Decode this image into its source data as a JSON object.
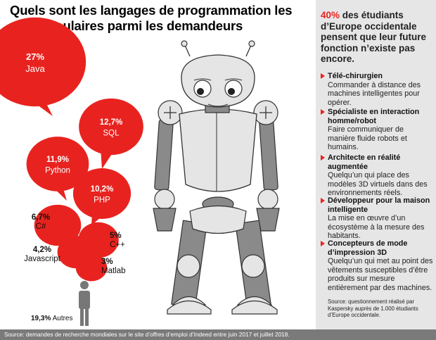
{
  "title": "Quels sont les langages de programmation les plus populaires parmi les demandeurs d’emploi?",
  "chart_data": {
    "type": "bubble-infographic",
    "unit": "%",
    "categories": [
      "Java",
      "SQL",
      "Python",
      "PHP",
      "C#",
      "C++",
      "Javascript",
      "Matlab",
      "Autres"
    ],
    "values": [
      27,
      12.7,
      11.9,
      10.2,
      6.7,
      5,
      4.2,
      3,
      19.3
    ],
    "value_labels": [
      "27%",
      "12,7%",
      "11,9%",
      "10,2%",
      "6,7%",
      "5%",
      "4,2%",
      "3%",
      "19,3%"
    ],
    "colors": {
      "bubble": "#e8231f",
      "label_in_bubble": "#ffffff"
    }
  },
  "sidebar": {
    "headline_pct": "40%",
    "headline_rest": " des étudiants d’Europe occidentale pensent que leur future fonction n’existe pas encore.",
    "items": [
      {
        "title": "Télé-chirurgien",
        "desc": "Commander à distance des machines intelligentes pour opérer."
      },
      {
        "title": "Spécialiste en interaction homme/robot",
        "desc": "Faire communiquer de manière fluide robots et humains."
      },
      {
        "title": "Architecte en réalité augmentée",
        "desc": "Quelqu’un qui place des modèles 3D virtuels dans des environnements réels."
      },
      {
        "title": "Développeur pour la maison intelligente",
        "desc": "La mise en œuvre d’un écosystème à la mesure des habitants."
      },
      {
        "title": "Concepteurs de mode d’impression 3D",
        "desc": "Quelqu’un qui met au point des vêtements susceptibles d’être produits sur mesure entièrement par des machines."
      }
    ],
    "note": "Source: questionnement réalisé par Kaspersky auprès de 1.000 étudiants d’Europe occidentale."
  },
  "footer": "Source: demandes de recherche mondiales sur le site d’offres d’emploi d’Indeed entre juin 2017 et juillet 2018."
}
